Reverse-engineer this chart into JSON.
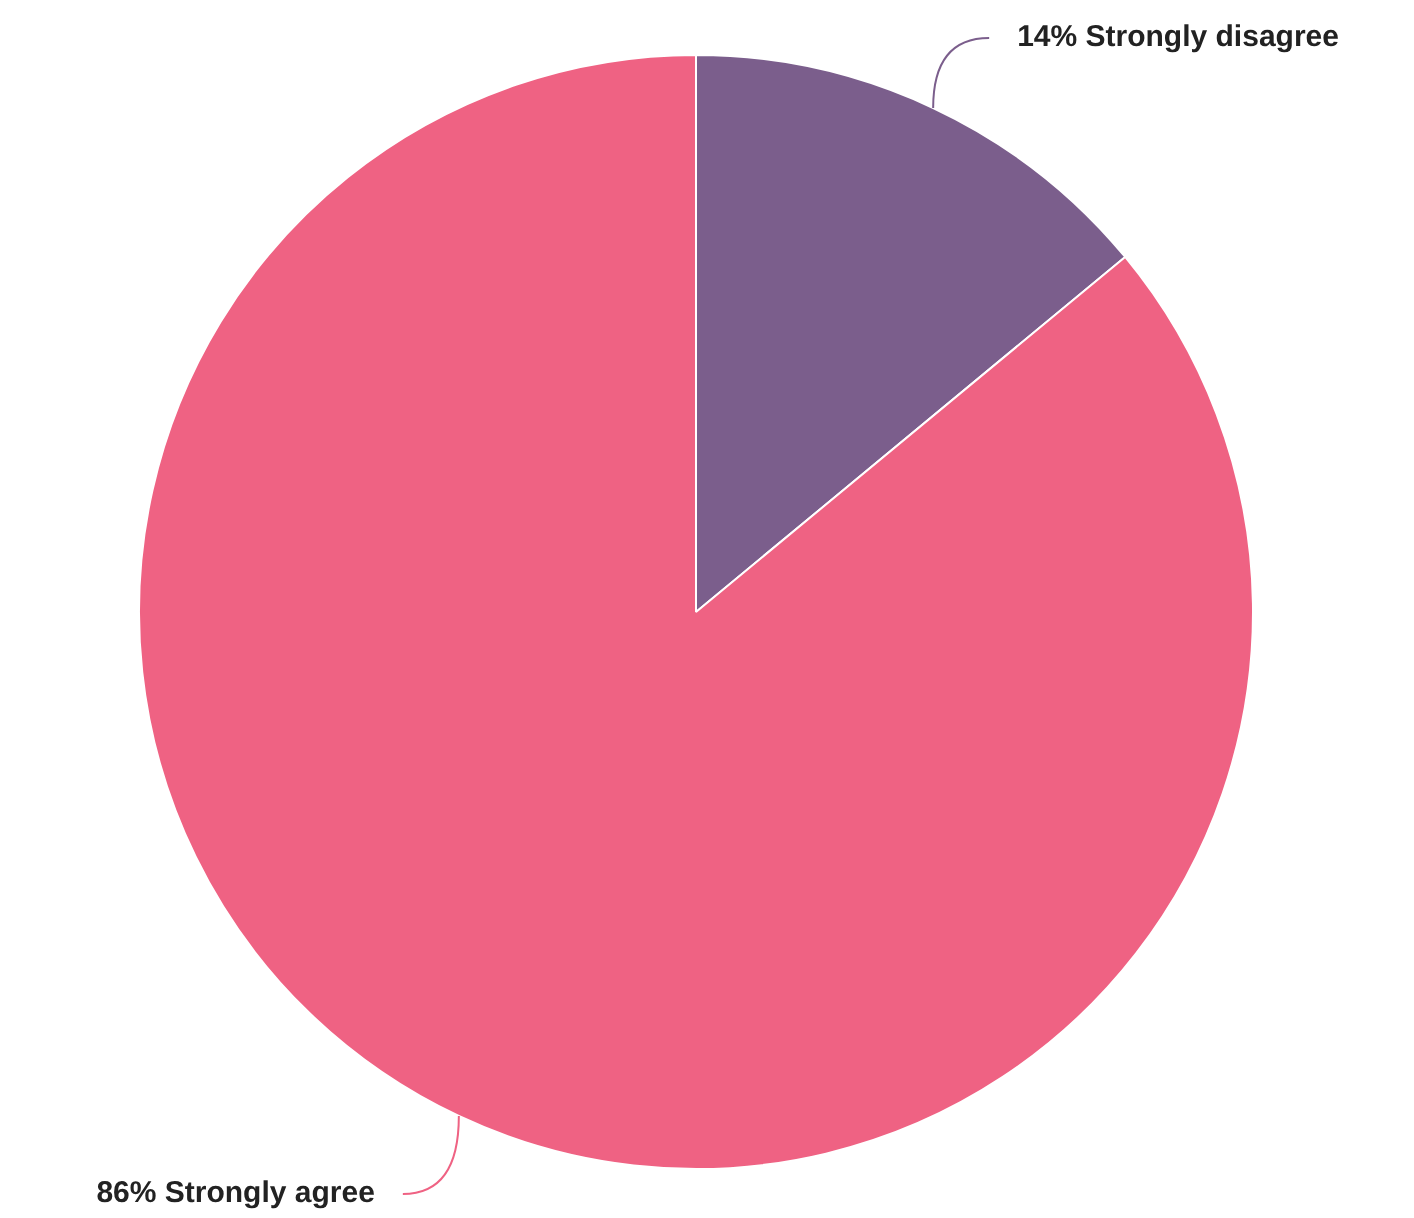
{
  "chart_data": {
    "type": "pie",
    "categories": [
      "Strongly disagree",
      "Strongly agree"
    ],
    "values": [
      14,
      86
    ],
    "value_labels": [
      "14%",
      "86%"
    ],
    "colors": [
      "#7b5e8c",
      "#ef6283"
    ],
    "legend": false
  }
}
